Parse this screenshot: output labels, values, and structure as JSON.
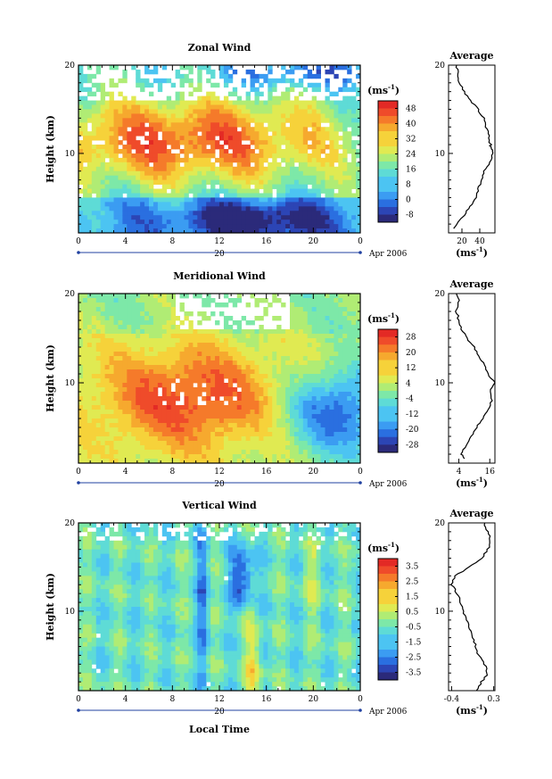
{
  "chart_data": [
    {
      "type": "heatmap",
      "title": "Zonal Wind",
      "ylabel": "Height (km)",
      "x_ticks": [
        "0",
        "4",
        "8",
        "12",
        "16",
        "20",
        "0"
      ],
      "xlim": [
        0,
        24
      ],
      "y_ticks": [
        "10",
        "20"
      ],
      "ylim": [
        1,
        20
      ],
      "date_marker": "20",
      "date_label": "Apr 2006",
      "colorbar": {
        "unit_label": "(ms",
        "unit_exp": "-1",
        "tick_labels": [
          "48",
          "40",
          "32",
          "24",
          "16",
          "8",
          "0",
          "-8"
        ],
        "range": [
          -12,
          52
        ]
      },
      "field_description": "westerly jet near 10-12 km peaking at 8-16 local time",
      "profile": {
        "title": "Average",
        "x_ticks": [
          "20",
          "40"
        ],
        "xlim": [
          5,
          57
        ],
        "unit_label": "(ms",
        "unit_exp": "-1",
        "heights_km": [
          1.5,
          3,
          4,
          5,
          6,
          7,
          8,
          9,
          10,
          10.5,
          11,
          12,
          13,
          14,
          15,
          16,
          17,
          18,
          19,
          20
        ],
        "values": [
          12,
          22,
          30,
          36,
          38,
          42,
          44,
          52,
          55,
          53,
          52,
          50,
          47,
          44,
          38,
          30,
          22,
          17,
          15,
          14
        ]
      }
    },
    {
      "type": "heatmap",
      "title": "Meridional Wind",
      "ylabel": "Height (km)",
      "x_ticks": [
        "0",
        "4",
        "8",
        "12",
        "16",
        "20",
        "0"
      ],
      "xlim": [
        0,
        24
      ],
      "y_ticks": [
        "10",
        "20"
      ],
      "ylim": [
        1,
        20
      ],
      "date_marker": "20",
      "date_label": "Apr 2006",
      "colorbar": {
        "unit_label": "(ms",
        "unit_exp": "-1",
        "tick_labels": [
          "28",
          "20",
          "12",
          "4",
          "-4",
          "-12",
          "-20",
          "-28"
        ],
        "range": [
          -32,
          32
        ]
      },
      "field_description": "southerly flow peaking near 8 km around 8-16 local time",
      "profile": {
        "title": "Average",
        "x_ticks": [
          "4",
          "16"
        ],
        "xlim": [
          0,
          18
        ],
        "unit_label": "(ms",
        "unit_exp": "-1",
        "heights_km": [
          1.5,
          2,
          3,
          4,
          5,
          6,
          7,
          8,
          9,
          10,
          11,
          12,
          13,
          14,
          15,
          16,
          17,
          18,
          19,
          20
        ],
        "values": [
          6,
          5,
          7,
          9,
          11,
          13,
          15,
          17,
          16,
          18,
          15,
          14,
          12,
          10,
          7,
          5,
          4,
          3,
          4,
          3
        ]
      }
    },
    {
      "type": "heatmap",
      "title": "Vertical Wind",
      "ylabel": "Height (km)",
      "xlabel": "Local Time",
      "x_ticks": [
        "0",
        "4",
        "8",
        "12",
        "16",
        "20",
        "0"
      ],
      "xlim": [
        0,
        24
      ],
      "y_ticks": [
        "10",
        "20"
      ],
      "ylim": [
        1,
        20
      ],
      "date_marker": "20",
      "date_label": "Apr 2006",
      "colorbar": {
        "unit_label": "(ms",
        "unit_exp": "-1",
        "tick_labels": [
          "3.5",
          "2.5",
          "1.5",
          "0.5",
          "-0.5",
          "-1.5",
          "-2.5",
          "-3.5"
        ],
        "range": [
          -4,
          4
        ]
      },
      "field_description": "weak vertical motion with downdraft cells near 14 local time",
      "profile": {
        "title": "Average",
        "x_ticks": [
          "-0.4",
          "0.3"
        ],
        "xlim": [
          -0.45,
          0.32
        ],
        "unit_label": "(ms",
        "unit_exp": "-1",
        "heights_km": [
          1,
          2,
          3,
          4,
          5,
          6,
          7,
          8,
          9,
          10,
          11,
          12,
          13,
          14,
          15,
          16,
          17,
          18,
          19,
          20
        ],
        "values": [
          0.0,
          0.1,
          0.2,
          0.15,
          0.05,
          0.0,
          -0.05,
          -0.1,
          -0.15,
          -0.2,
          -0.25,
          -0.3,
          -0.4,
          -0.35,
          -0.1,
          0.1,
          0.2,
          0.25,
          0.2,
          0.15
        ]
      }
    }
  ]
}
